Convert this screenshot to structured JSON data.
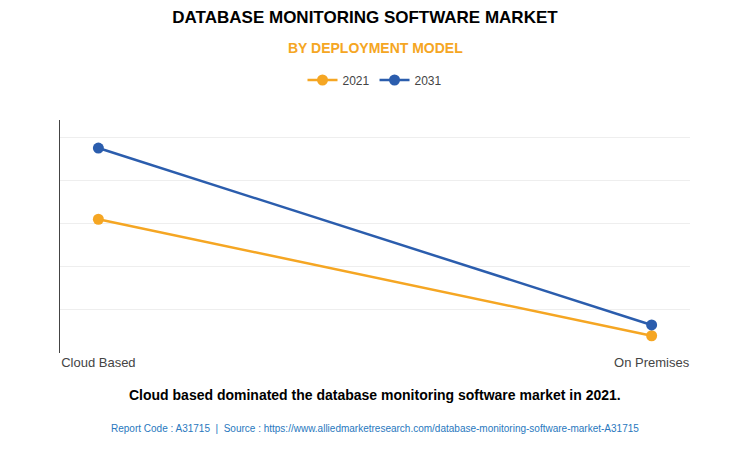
{
  "chart_data": {
    "type": "line",
    "title": "DATABASE MONITORING SOFTWARE MARKET",
    "subtitle": "BY DEPLOYMENT MODEL",
    "categories": [
      "Cloud Based",
      "On Premises"
    ],
    "series": [
      {
        "name": "2021",
        "color": "#F5A623",
        "values": [
          0.62,
          0.08
        ],
        "marker": "circle",
        "line_style": "solid"
      },
      {
        "name": "2031",
        "color": "#2B5DAD",
        "values": [
          0.95,
          0.13
        ],
        "marker": "circle",
        "line_style": "solid"
      }
    ],
    "ylim": [
      0.0,
      1.08
    ],
    "yticks": [
      0.0,
      0.2,
      0.4,
      0.6,
      0.8,
      1.0
    ],
    "grid": true,
    "tick_labels": "x",
    "legend": "top",
    "annotations": [
      "Cloud based dominated the database monitoring software market in 2021.",
      "Report Code : A31715  |  Source : https://www.alliedmarketresearch.com/database-monitoring-software-market-A31715"
    ]
  }
}
